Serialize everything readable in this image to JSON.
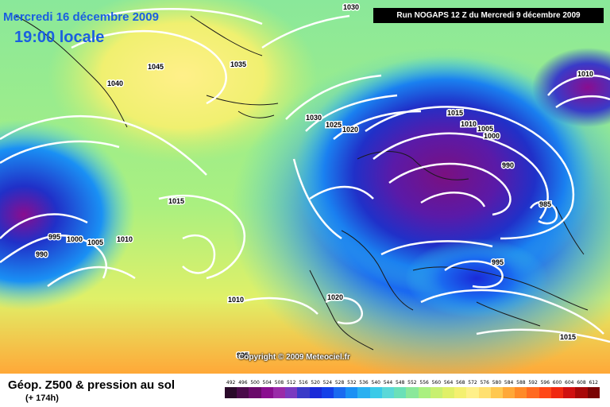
{
  "header": {
    "date_line": "Mercredi 16 décembre 2009",
    "time_line": "19:00 locale",
    "run_label": "Run NOGAPS 12 Z du Mercredi 9 décembre 2009"
  },
  "map": {
    "copyright": "Copyright © 2009 Meteociel.fr",
    "isobar_labels": [
      "1030",
      "1045",
      "1040",
      "1035",
      "1030",
      "1025",
      "1020",
      "1015",
      "1010",
      "1005",
      "1000",
      "990",
      "985",
      "995",
      "1010",
      "1015",
      "995",
      "1000",
      "1005",
      "1010",
      "990",
      "1010",
      "1020",
      "1015",
      "995"
    ],
    "colors": {
      "isobar_line": "#ffffff",
      "coastline": "#1a1a1a",
      "low_center": "#8a0d8f",
      "high_center": "#fff089"
    }
  },
  "legend": {
    "title": "Géop. Z500 & pression au sol",
    "subtitle": "(+ 174h)",
    "scale_values": [
      "492",
      "496",
      "500",
      "504",
      "508",
      "512",
      "516",
      "520",
      "524",
      "528",
      "532",
      "536",
      "540",
      "544",
      "548",
      "552",
      "556",
      "560",
      "564",
      "568",
      "572",
      "576",
      "580",
      "584",
      "588",
      "592",
      "596",
      "600",
      "604",
      "608",
      "612"
    ],
    "scale_colors": [
      "#2a0a2a",
      "#4a0a4a",
      "#6a0a6a",
      "#8a0d8f",
      "#9a2aa8",
      "#7a3ac0",
      "#3a3ac8",
      "#1a2ad8",
      "#1440e8",
      "#1a6af0",
      "#1a90f4",
      "#2ab0f0",
      "#3acae8",
      "#5ad8d8",
      "#6ae0b8",
      "#8ae89a",
      "#aaf080",
      "#c8f070",
      "#e0f068",
      "#f4f070",
      "#fff089",
      "#ffe070",
      "#ffc850",
      "#ffa838",
      "#ff8a28",
      "#ff6a20",
      "#ff4818",
      "#f02810",
      "#d01010",
      "#a80808",
      "#7a0404"
    ]
  }
}
